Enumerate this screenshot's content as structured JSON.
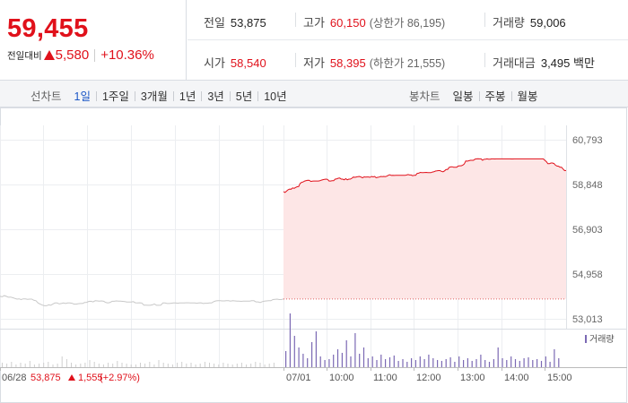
{
  "quote": {
    "price": "59,455",
    "change_label": "전일대비",
    "change_abs": "5,580",
    "change_pct": "+10.36%"
  },
  "stats": {
    "prev_close": {
      "label": "전일",
      "value": "53,875"
    },
    "high": {
      "label": "고가",
      "value": "60,150",
      "sub": "(상한가 86,195)"
    },
    "volume": {
      "label": "거래량",
      "value": "59,006"
    },
    "open": {
      "label": "시가",
      "value": "58,540"
    },
    "low": {
      "label": "저가",
      "value": "58,395",
      "sub": "(하한가 21,555)"
    },
    "turnover": {
      "label": "거래대금",
      "value": "3,495 백만"
    }
  },
  "toolbar": {
    "line_title": "선차트",
    "line_periods": [
      "1일",
      "1주일",
      "3개월",
      "1년",
      "3년",
      "5년",
      "10년"
    ],
    "active_period": "1일",
    "candle_title": "봉차트",
    "candle_periods": [
      "일봉",
      "주봉",
      "월봉"
    ]
  },
  "colors": {
    "up": "#e0111b",
    "accent": "#1a56c6",
    "volume_bar": "#7b69b4",
    "prev_line": "#c8c8c8"
  },
  "chart_data": {
    "type": "line",
    "y_ticks": [
      "60,793",
      "58,848",
      "56,903",
      "54,958",
      "53,013"
    ],
    "ylim": [
      53013,
      60793
    ],
    "x_ticks": [
      "06/28",
      "07/01",
      "10:00",
      "11:00",
      "12:00",
      "13:00",
      "14:00",
      "15:00"
    ],
    "prev_day": {
      "label": "06/28",
      "close": "53,875",
      "change": "1,555",
      "change_pct": "(+2.97%)",
      "values": [
        53995,
        53970,
        54020,
        53990,
        53950,
        53960,
        53930,
        53900,
        53870,
        53880,
        53850,
        53880,
        53880,
        53860,
        53870,
        53870,
        53820,
        53800,
        53700,
        53650,
        53610,
        53580,
        53580,
        53620,
        53600,
        53660,
        53700,
        53700,
        53660,
        53680,
        53700,
        53680,
        53700,
        53700,
        53690,
        53650,
        53650,
        53670,
        53680,
        53680,
        53720,
        53730,
        53770,
        53775,
        53750,
        53800,
        53790,
        53780,
        53790,
        53775,
        53720,
        53700,
        53720,
        53775,
        53775,
        53790,
        53780,
        53780,
        53770,
        53760,
        53740,
        53745,
        53745,
        53760,
        53710,
        53700,
        53710,
        53700,
        53610,
        53610,
        53600,
        53600,
        53620,
        53660,
        53600,
        53600,
        53605,
        53700,
        53700,
        53680,
        53680,
        53690,
        53700,
        53700,
        53690,
        53700,
        53700,
        53700,
        53710,
        53710,
        53700,
        53700,
        53700,
        53690,
        53700,
        53710,
        53680,
        53690,
        53690,
        53700,
        53700,
        53760,
        53790,
        53800,
        53800,
        53790,
        53790,
        53800,
        53800,
        53780,
        53800,
        53790,
        53780,
        53780,
        53770,
        53780,
        53780,
        53780,
        53780,
        53800,
        53800,
        53750,
        53750,
        53720,
        53760,
        53780,
        53790,
        53800,
        53800,
        53850,
        53860,
        53870,
        53850,
        53850,
        53875
      ]
    },
    "today": {
      "values": [
        58540,
        58500,
        58560,
        58620,
        58650,
        58640,
        58700,
        58680,
        58720,
        58750,
        58760,
        58900,
        58940,
        58960,
        59000,
        59020,
        59030,
        59025,
        58980,
        58990,
        59000,
        59000,
        59000,
        59000,
        59010,
        59040,
        59060,
        59070,
        59080,
        59070,
        59000,
        59000,
        59010,
        59010,
        59080,
        59090,
        59120,
        59130,
        59080,
        59080,
        59050,
        59100,
        59050,
        59080,
        59080,
        59120,
        59170,
        59160,
        59175,
        59190,
        59200,
        59170,
        59140,
        59180,
        59170,
        59175,
        59175,
        59160,
        59200,
        59180,
        59200,
        59140,
        59160,
        59170,
        59200,
        59190,
        59200,
        59190,
        59210,
        59250,
        59270,
        59240,
        59250,
        59240,
        59245,
        59245,
        59250,
        59250,
        59245,
        59245,
        59245,
        59260,
        59280,
        59260,
        59260,
        59230,
        59250,
        59250,
        59330,
        59340,
        59375,
        59360,
        59360,
        59370,
        59375,
        59365,
        59360,
        59360,
        59390,
        59400,
        59430,
        59440,
        59450,
        59450,
        59420,
        59400,
        59440,
        59500,
        59500,
        59590,
        59610,
        59620,
        59600,
        59600,
        59600,
        59650,
        59660,
        59660,
        59690,
        59740,
        59870,
        59860,
        59880,
        59900,
        59900,
        59900,
        59950,
        59960,
        59965,
        59960,
        59960,
        59900,
        59940,
        59950,
        59960,
        59950,
        59950,
        59960,
        59960,
        59955,
        59960,
        59960,
        59960,
        59960,
        59960,
        59960,
        59960,
        59960,
        59960,
        59960,
        59955,
        59955,
        59960,
        59960,
        59960,
        59960,
        59960,
        59960,
        59960,
        59960,
        59960,
        59960,
        59960,
        59960,
        59960,
        59960,
        59960,
        59960,
        59960,
        59960,
        59960,
        59960,
        59900,
        59840,
        59750,
        59750,
        59780,
        59780,
        59760,
        59690,
        59650,
        59640,
        59600,
        59600,
        59520,
        59450,
        59455
      ]
    },
    "volume_label": "거래량",
    "prev_volume": [
      5,
      4,
      6,
      3,
      5,
      4,
      7,
      3,
      4,
      5,
      6,
      3,
      4,
      12,
      9,
      5,
      3,
      4,
      5,
      8,
      6,
      4,
      3,
      5,
      4,
      7,
      5,
      4,
      3,
      3,
      5,
      4,
      6,
      3,
      8,
      5,
      4,
      3,
      5,
      6,
      4,
      5,
      3,
      4,
      6,
      5,
      4,
      3,
      5,
      4,
      3,
      4,
      5,
      3,
      4,
      6,
      5,
      3,
      4,
      5
    ],
    "today_volume": [
      18,
      60,
      35,
      22,
      15,
      10,
      28,
      40,
      12,
      8,
      9,
      14,
      20,
      16,
      30,
      12,
      38,
      15,
      22,
      10,
      12,
      8,
      14,
      9,
      11,
      13,
      7,
      9,
      6,
      10,
      8,
      12,
      9,
      14,
      10,
      8,
      7,
      9,
      11,
      6,
      12,
      8,
      10,
      7,
      9,
      14,
      8,
      6,
      9,
      22,
      10,
      8,
      12,
      9,
      7,
      10,
      11,
      8,
      9,
      7,
      12,
      6,
      20,
      10
    ]
  }
}
